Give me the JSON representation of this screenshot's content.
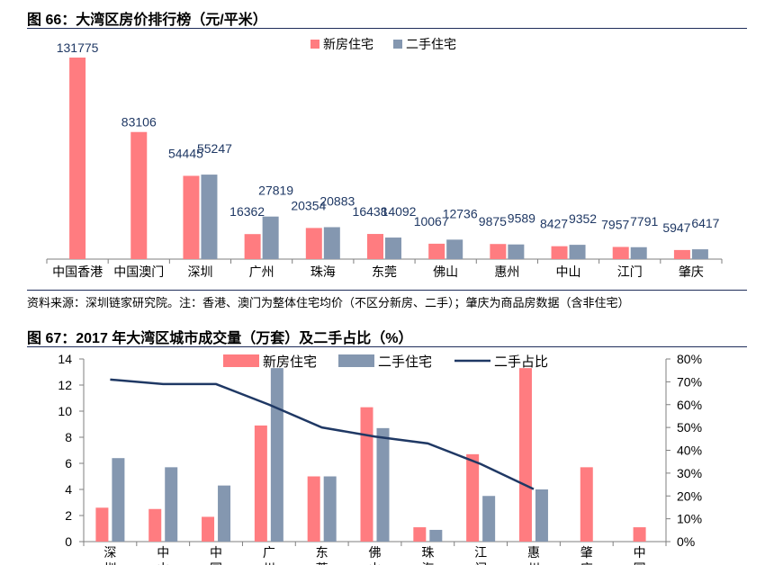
{
  "fig1": {
    "title": "图 66：大湾区房价排行榜（元/平米）",
    "note": "资料来源：深圳链家研究院。注：香港、澳门为整体住宅均价（不区分新房、二手）；肇庆为商品房数据（含非住宅）"
  },
  "fig2": {
    "title": "图 67：2017 年大湾区城市成交量（万套）及二手占比（%）"
  },
  "colors": {
    "new": "#ff7c80",
    "second": "#8497b0",
    "line": "#1f3864"
  },
  "chart_data": [
    {
      "type": "bar",
      "categories": [
        "中国香港",
        "中国澳门",
        "深圳",
        "广州",
        "珠海",
        "东莞",
        "佛山",
        "惠州",
        "中山",
        "江门",
        "肇庆"
      ],
      "series": [
        {
          "name": "新房住宅",
          "values": [
            131775,
            83106,
            54445,
            16362,
            20354,
            16438,
            10067,
            9875,
            8427,
            7957,
            5947
          ]
        },
        {
          "name": "二手住宅",
          "values": [
            null,
            null,
            55247,
            27819,
            20883,
            14092,
            12736,
            9589,
            9352,
            7791,
            6417
          ]
        }
      ],
      "data_labels": {
        "new": [
          "131775",
          "83106",
          "54445",
          "16362",
          "20354",
          "16438",
          "10067",
          "9875",
          "8427",
          "7957",
          "5947"
        ],
        "second": [
          "",
          "",
          "55247",
          "27819",
          "20883",
          "14092",
          "12736",
          "9589",
          "9352",
          "7791",
          "6417"
        ]
      },
      "ylim": [
        0,
        140000
      ],
      "legend": "top-center"
    },
    {
      "type": "bar+line",
      "categories": [
        "深圳",
        "中山",
        "中国",
        "广州",
        "东莞",
        "佛山",
        "珠海",
        "江门",
        "惠州",
        "肇庆",
        "中国"
      ],
      "series": [
        {
          "name": "新房住宅",
          "values": [
            2.6,
            2.5,
            1.9,
            8.9,
            5.0,
            10.3,
            1.1,
            6.7,
            13.3,
            5.7,
            1.1
          ]
        },
        {
          "name": "二手住宅",
          "values": [
            6.4,
            5.7,
            4.3,
            13.3,
            5.0,
            8.7,
            0.9,
            3.5,
            4.0,
            null,
            null
          ]
        },
        {
          "name": "二手占比",
          "axis": "right",
          "values": [
            71,
            69,
            69,
            60,
            50,
            46,
            43,
            34,
            23,
            null,
            null
          ]
        }
      ],
      "y_left": {
        "ylim": [
          0,
          14
        ],
        "ticks": [
          "0",
          "2",
          "4",
          "6",
          "8",
          "10",
          "12",
          "14"
        ]
      },
      "y_right": {
        "ylim": [
          0,
          80
        ],
        "ticks": [
          "0%",
          "10%",
          "20%",
          "30%",
          "40%",
          "50%",
          "60%",
          "70%",
          "80%"
        ]
      },
      "legend": "top-center"
    }
  ]
}
